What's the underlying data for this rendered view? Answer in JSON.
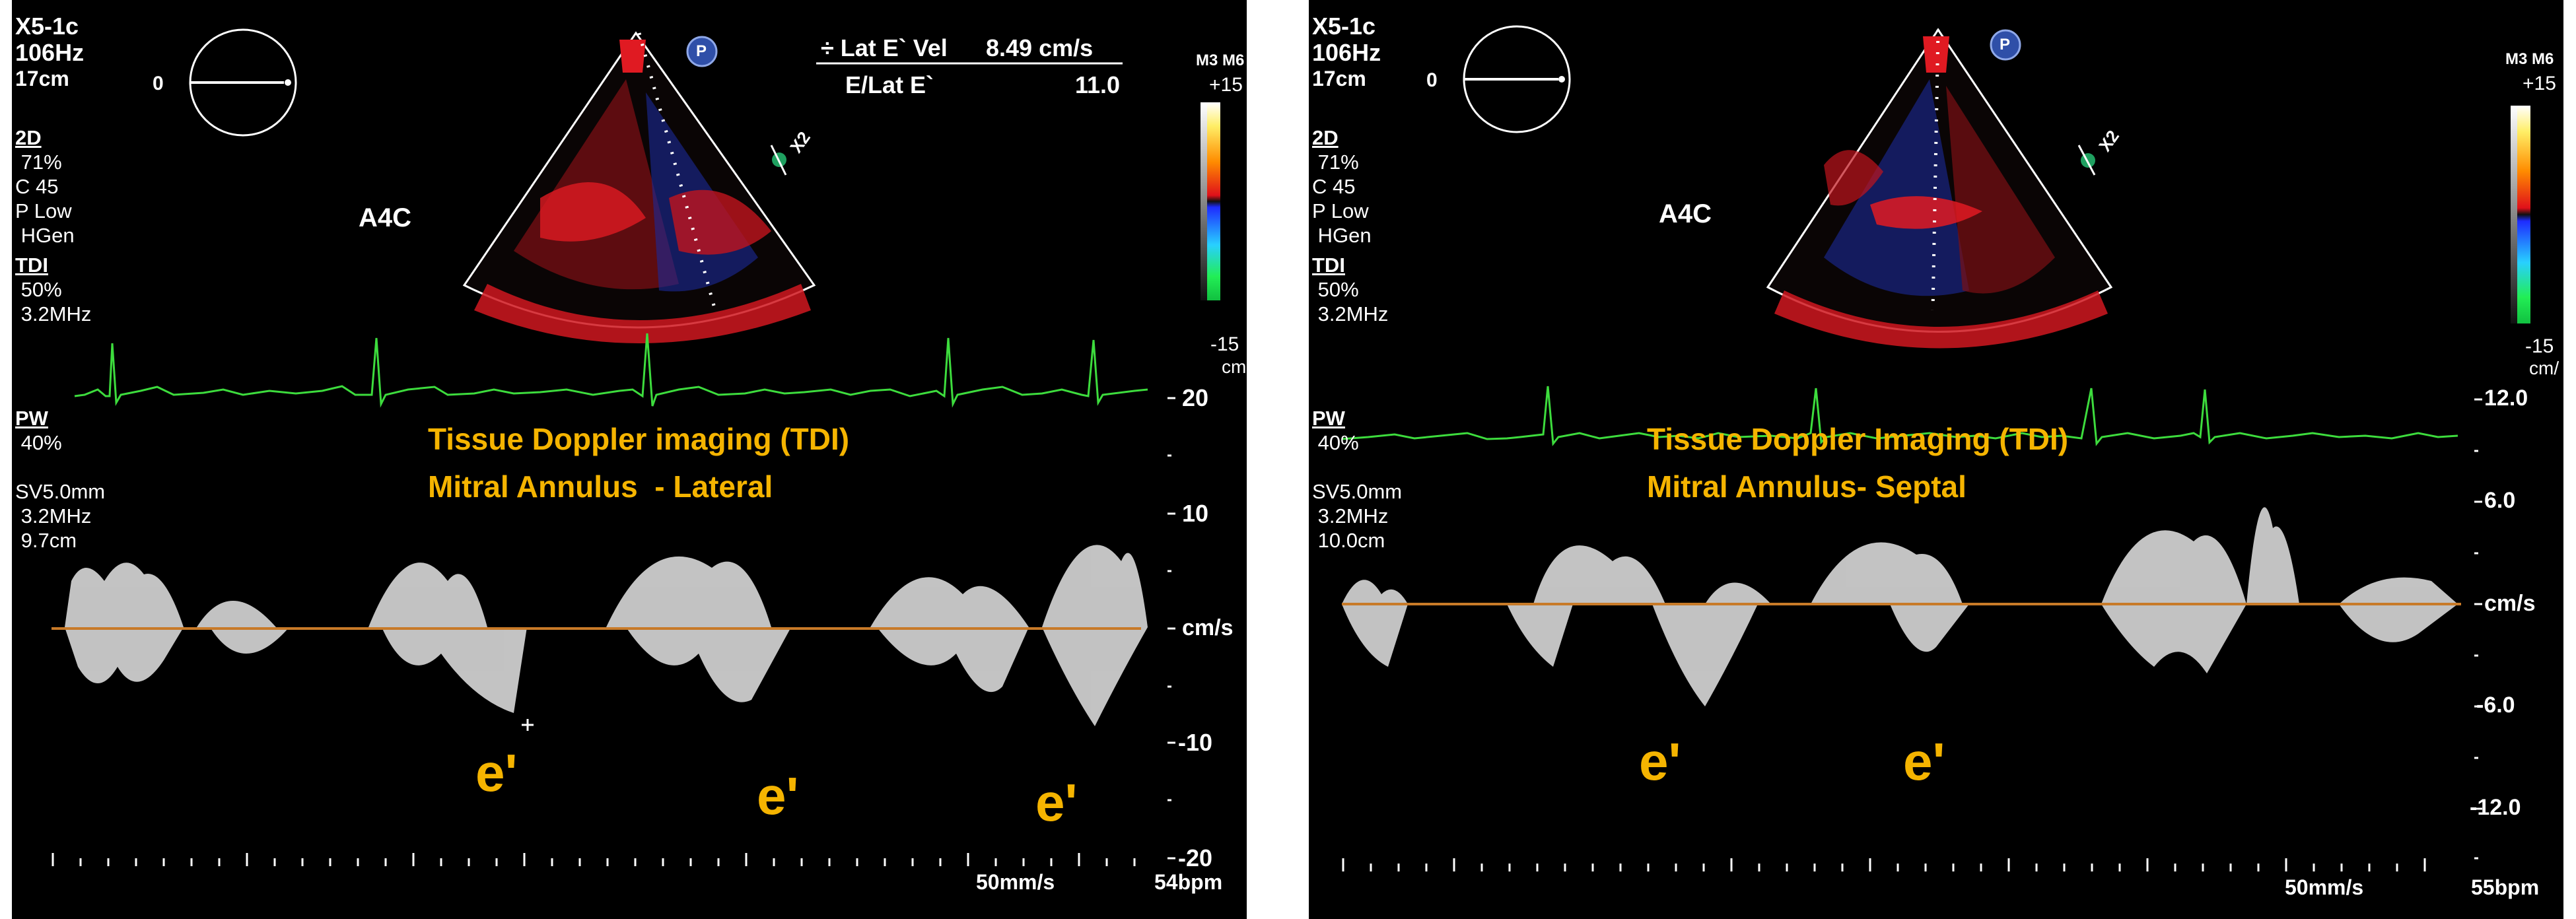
{
  "left": {
    "probe": "X5-1c",
    "framerate": "106Hz",
    "depth": "17cm",
    "params_2d": [
      "2D",
      " 71%",
      "C 45",
      "P Low",
      " HGen"
    ],
    "params_tdi": [
      "TDI",
      " 50%",
      " 3.2MHz"
    ],
    "params_pw": [
      "PW",
      " 40%",
      "",
      "SV5.0mm",
      " 3.2MHz",
      " 9.7cm"
    ],
    "view": "A4C",
    "zero_label": "0",
    "p_badge": "P",
    "x2": "X2",
    "meas_row1_label": "÷ Lat E` Vel",
    "meas_row1_value": "8.49 cm/s",
    "meas_row2_label": "E/Lat E`",
    "meas_row2_value": "11.0",
    "colorbar_top": "M3 M6",
    "colorbar_max": "+15",
    "colorbar_min": "-15",
    "colorbar_unit": "cm",
    "title1": "Tissue Doppler imaging (TDI)",
    "title2": "Mitral Annulus  - Lateral",
    "scale": [
      "20",
      "10",
      "cm/s",
      "-10",
      "-20"
    ],
    "e_labels": [
      "e'",
      "e'",
      "e'"
    ],
    "sweep": "50mm/s",
    "hr": "54bpm"
  },
  "right": {
    "probe": "X5-1c",
    "framerate": "106Hz",
    "depth": "17cm",
    "params_2d": [
      "2D",
      " 71%",
      "C 45",
      "P Low",
      " HGen"
    ],
    "params_tdi": [
      "TDI",
      " 50%",
      " 3.2MHz"
    ],
    "params_pw": [
      "PW",
      " 40%",
      "",
      "SV5.0mm",
      " 3.2MHz",
      " 10.0cm"
    ],
    "view": "A4C",
    "zero_label": "0",
    "p_badge": "P",
    "x2": "X2",
    "colorbar_top": "M3 M6",
    "colorbar_max": "+15",
    "colorbar_min": "-15",
    "colorbar_unit": "cm/",
    "title1": "Tissue Doppler Imaging (TDI)",
    "title2": "Mitral Annulus- Septal",
    "scale": [
      "12.0",
      "6.0",
      "cm/s",
      "-6.0",
      "-12.0"
    ],
    "e_labels": [
      "e'",
      "e'"
    ],
    "sweep": "50mm/s",
    "hr": "55bpm"
  },
  "colors": {
    "background": "#000000",
    "ecg": "#3ddc3d",
    "baseline": "#c87a28",
    "annotation": "#f5b400",
    "doppler_red": "#e0202a",
    "doppler_blue": "#2a3cff"
  }
}
